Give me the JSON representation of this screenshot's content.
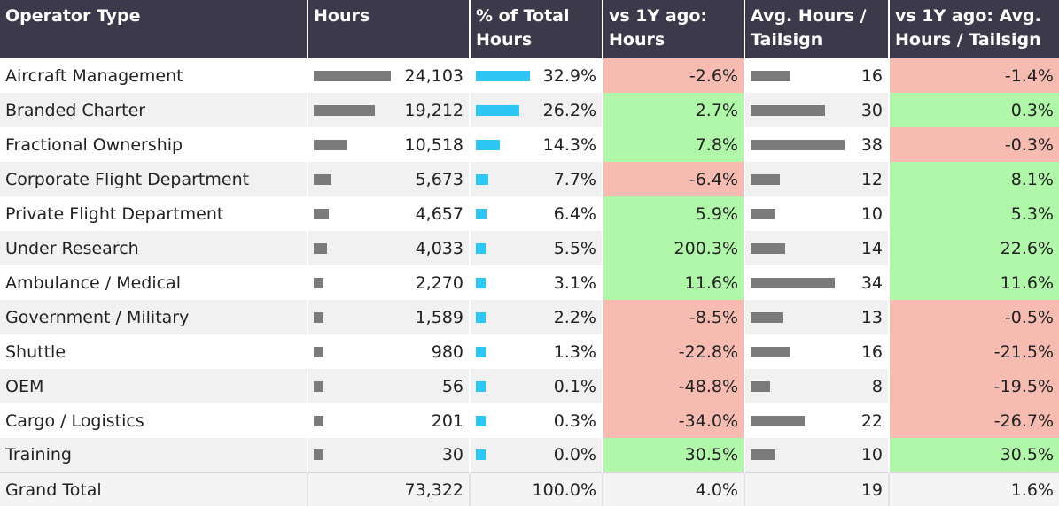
{
  "chart_data": {
    "type": "table",
    "columns": [
      "Operator Type",
      "Hours",
      "% of Total Hours",
      "vs 1Y ago: Hours",
      "Avg. Hours / Tailsign",
      "vs 1Y ago: Avg. Hours / Tailsign"
    ],
    "rows": [
      {
        "operator_type": "Aircraft Management",
        "hours": 24103,
        "hours_label": "24,103",
        "pct_total": 32.9,
        "pct_total_label": "32.9%",
        "yoy_hours": -2.6,
        "yoy_hours_label": "-2.6%",
        "avg_hours": 16,
        "avg_hours_label": "16",
        "yoy_avg": -1.4,
        "yoy_avg_label": "-1.4%"
      },
      {
        "operator_type": "Branded Charter",
        "hours": 19212,
        "hours_label": "19,212",
        "pct_total": 26.2,
        "pct_total_label": "26.2%",
        "yoy_hours": 2.7,
        "yoy_hours_label": "2.7%",
        "avg_hours": 30,
        "avg_hours_label": "30",
        "yoy_avg": 0.3,
        "yoy_avg_label": "0.3%"
      },
      {
        "operator_type": "Fractional Ownership",
        "hours": 10518,
        "hours_label": "10,518",
        "pct_total": 14.3,
        "pct_total_label": "14.3%",
        "yoy_hours": 7.8,
        "yoy_hours_label": "7.8%",
        "avg_hours": 38,
        "avg_hours_label": "38",
        "yoy_avg": -0.3,
        "yoy_avg_label": "-0.3%"
      },
      {
        "operator_type": "Corporate Flight Department",
        "hours": 5673,
        "hours_label": "5,673",
        "pct_total": 7.7,
        "pct_total_label": "7.7%",
        "yoy_hours": -6.4,
        "yoy_hours_label": "-6.4%",
        "avg_hours": 12,
        "avg_hours_label": "12",
        "yoy_avg": 8.1,
        "yoy_avg_label": "8.1%"
      },
      {
        "operator_type": "Private Flight Department",
        "hours": 4657,
        "hours_label": "4,657",
        "pct_total": 6.4,
        "pct_total_label": "6.4%",
        "yoy_hours": 5.9,
        "yoy_hours_label": "5.9%",
        "avg_hours": 10,
        "avg_hours_label": "10",
        "yoy_avg": 5.3,
        "yoy_avg_label": "5.3%"
      },
      {
        "operator_type": "Under Research",
        "hours": 4033,
        "hours_label": "4,033",
        "pct_total": 5.5,
        "pct_total_label": "5.5%",
        "yoy_hours": 200.3,
        "yoy_hours_label": "200.3%",
        "avg_hours": 14,
        "avg_hours_label": "14",
        "yoy_avg": 22.6,
        "yoy_avg_label": "22.6%"
      },
      {
        "operator_type": "Ambulance / Medical",
        "hours": 2270,
        "hours_label": "2,270",
        "pct_total": 3.1,
        "pct_total_label": "3.1%",
        "yoy_hours": 11.6,
        "yoy_hours_label": "11.6%",
        "avg_hours": 34,
        "avg_hours_label": "34",
        "yoy_avg": 11.6,
        "yoy_avg_label": "11.6%"
      },
      {
        "operator_type": "Government / Military",
        "hours": 1589,
        "hours_label": "1,589",
        "pct_total": 2.2,
        "pct_total_label": "2.2%",
        "yoy_hours": -8.5,
        "yoy_hours_label": "-8.5%",
        "avg_hours": 13,
        "avg_hours_label": "13",
        "yoy_avg": -0.5,
        "yoy_avg_label": "-0.5%"
      },
      {
        "operator_type": "Shuttle",
        "hours": 980,
        "hours_label": "980",
        "pct_total": 1.3,
        "pct_total_label": "1.3%",
        "yoy_hours": -22.8,
        "yoy_hours_label": "-22.8%",
        "avg_hours": 16,
        "avg_hours_label": "16",
        "yoy_avg": -21.5,
        "yoy_avg_label": "-21.5%"
      },
      {
        "operator_type": "OEM",
        "hours": 56,
        "hours_label": "56",
        "pct_total": 0.1,
        "pct_total_label": "0.1%",
        "yoy_hours": -48.8,
        "yoy_hours_label": "-48.8%",
        "avg_hours": 8,
        "avg_hours_label": "8",
        "yoy_avg": -19.5,
        "yoy_avg_label": "-19.5%"
      },
      {
        "operator_type": "Cargo / Logistics",
        "hours": 201,
        "hours_label": "201",
        "pct_total": 0.3,
        "pct_total_label": "0.3%",
        "yoy_hours": -34.0,
        "yoy_hours_label": "-34.0%",
        "avg_hours": 22,
        "avg_hours_label": "22",
        "yoy_avg": -26.7,
        "yoy_avg_label": "-26.7%"
      },
      {
        "operator_type": "Training",
        "hours": 30,
        "hours_label": "30",
        "pct_total": 0.0,
        "pct_total_label": "0.0%",
        "yoy_hours": 30.5,
        "yoy_hours_label": "30.5%",
        "avg_hours": 10,
        "avg_hours_label": "10",
        "yoy_avg": 30.5,
        "yoy_avg_label": "30.5%"
      }
    ],
    "total": {
      "label": "Grand Total",
      "hours_label": "73,322",
      "pct_total_label": "100.0%",
      "yoy_hours_label": "4.0%",
      "avg_hours_label": "19",
      "yoy_avg_label": "1.6%"
    }
  },
  "colors": {
    "header_bg": "#3c3a4a",
    "negative": "#f6bcb1",
    "positive": "#b0f7a9",
    "bar_gray": "#7b7b7b",
    "bar_blue": "#2ec6f5"
  }
}
